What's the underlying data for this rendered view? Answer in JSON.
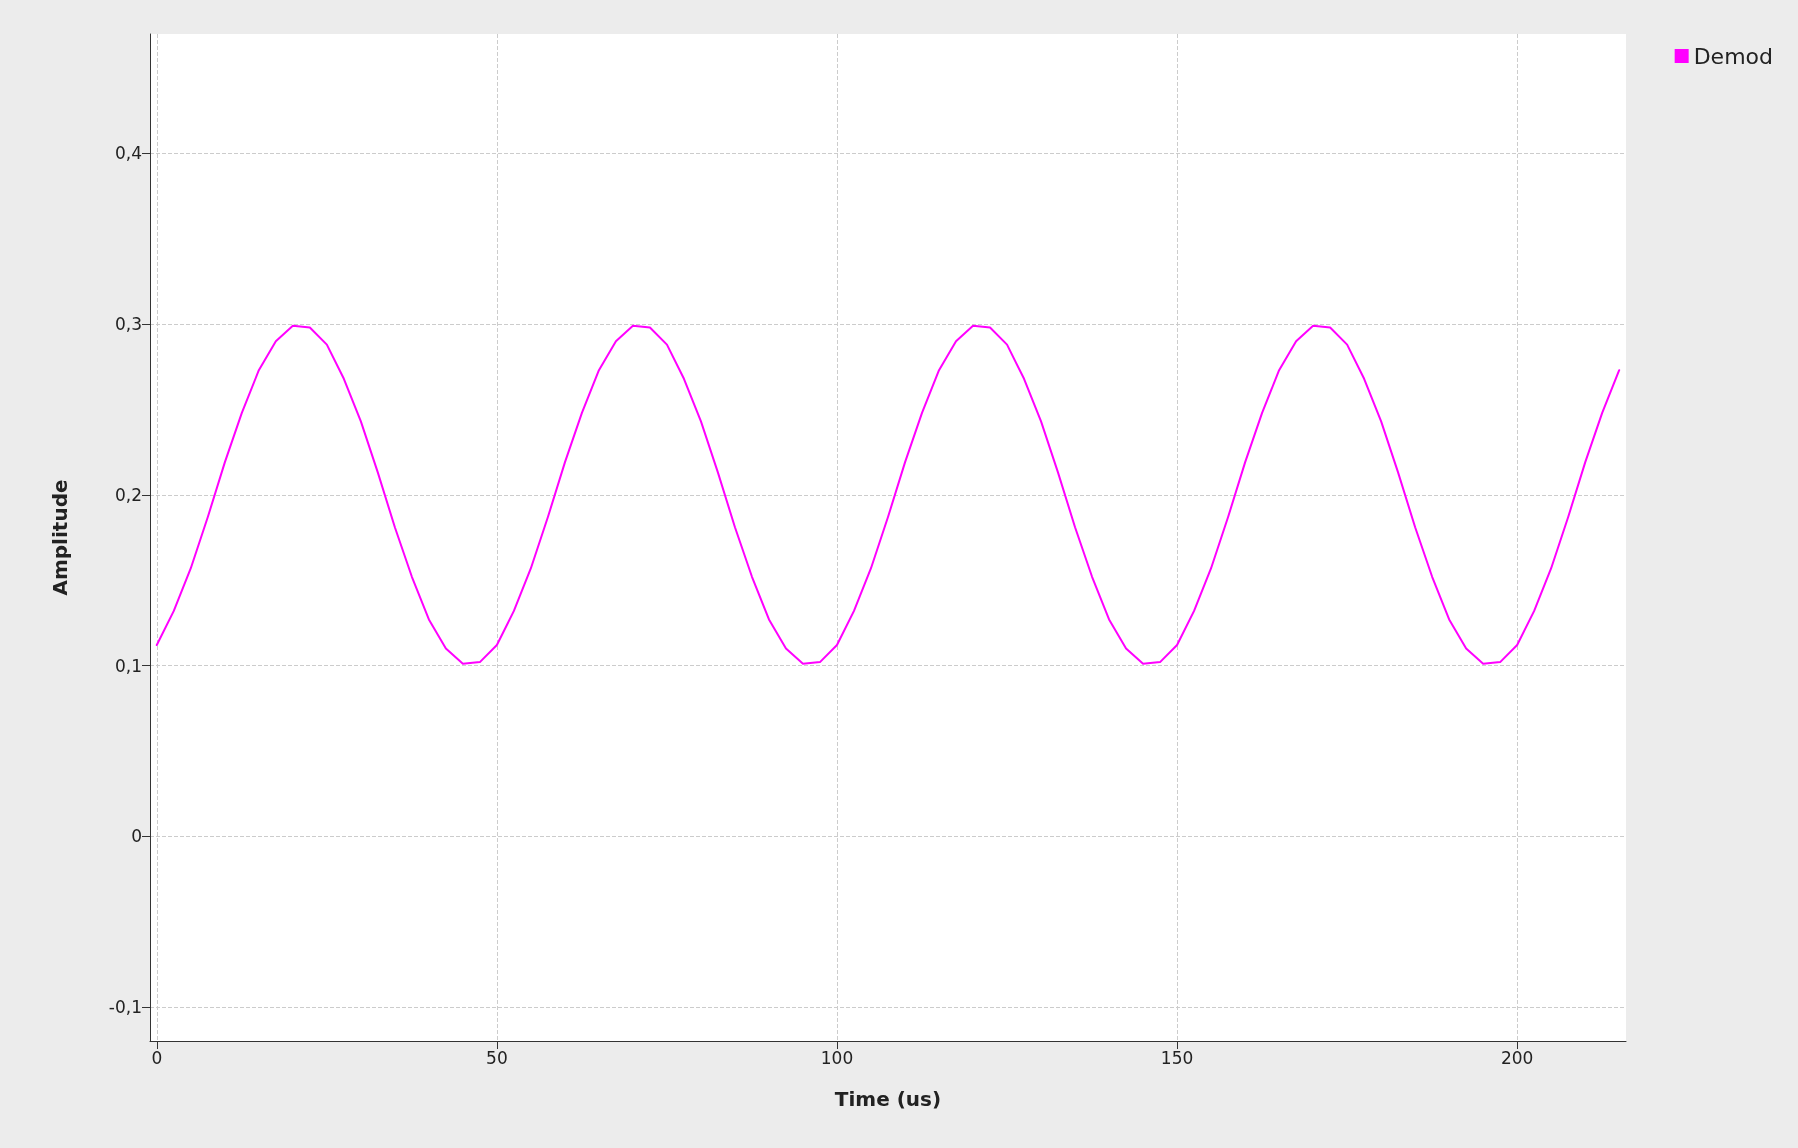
{
  "chart_data": {
    "type": "line",
    "xlabel": "Time (us)",
    "ylabel": "Amplitude",
    "x": [
      0,
      2.5,
      5,
      7.5,
      10,
      12.5,
      15,
      17.5,
      20,
      22.5,
      25,
      27.5,
      30,
      32.5,
      35,
      37.5,
      40,
      42.5,
      45,
      47.5,
      50,
      52.5,
      55,
      57.5,
      60,
      62.5,
      65,
      67.5,
      70,
      72.5,
      75,
      77.5,
      80,
      82.5,
      85,
      87.5,
      90,
      92.5,
      95,
      97.5,
      100,
      102.5,
      105,
      107.5,
      110,
      112.5,
      115,
      117.5,
      120,
      122.5,
      125,
      127.5,
      130,
      132.5,
      135,
      137.5,
      140,
      142.5,
      145,
      147.5,
      150,
      152.5,
      155,
      157.5,
      160,
      162.5,
      165,
      167.5,
      170,
      172.5,
      175,
      177.5,
      180,
      182.5,
      185,
      187.5,
      190,
      192.5,
      195,
      197.5,
      200,
      202.5,
      205,
      207.5,
      210,
      212.5,
      215
    ],
    "series": [
      {
        "name": "Demod",
        "color": "#ff00ff",
        "values": [
          0.112,
          0.132,
          0.157,
          0.187,
          0.219,
          0.248,
          0.273,
          0.29,
          0.299,
          0.298,
          0.288,
          0.268,
          0.243,
          0.213,
          0.181,
          0.152,
          0.127,
          0.11,
          0.101,
          0.102,
          0.112,
          0.132,
          0.157,
          0.187,
          0.219,
          0.248,
          0.273,
          0.29,
          0.299,
          0.298,
          0.288,
          0.268,
          0.243,
          0.213,
          0.181,
          0.152,
          0.127,
          0.11,
          0.101,
          0.102,
          0.112,
          0.132,
          0.157,
          0.187,
          0.219,
          0.248,
          0.273,
          0.29,
          0.299,
          0.298,
          0.288,
          0.268,
          0.243,
          0.213,
          0.181,
          0.152,
          0.127,
          0.11,
          0.101,
          0.102,
          0.112,
          0.132,
          0.157,
          0.187,
          0.219,
          0.248,
          0.273,
          0.29,
          0.299,
          0.298,
          0.288,
          0.268,
          0.243,
          0.213,
          0.181,
          0.152,
          0.127,
          0.11,
          0.101,
          0.102,
          0.112,
          0.132,
          0.157,
          0.187,
          0.219,
          0.248,
          0.273
        ]
      }
    ],
    "xlim": [
      -1,
      216
    ],
    "xticks": [
      0,
      50,
      100,
      150,
      200
    ],
    "ylim": [
      -0.12,
      0.47
    ],
    "yticks": [
      {
        "value": -0.1,
        "label": "-0,1"
      },
      0,
      {
        "value": 0.1,
        "label": "0,1"
      },
      {
        "value": 0.2,
        "label": "0,2"
      },
      {
        "value": 0.3,
        "label": "0,3"
      },
      {
        "value": 0.4,
        "label": "0,4"
      }
    ],
    "grid": true,
    "legend": "top right",
    "marker": "none",
    "line_style": "solid"
  }
}
